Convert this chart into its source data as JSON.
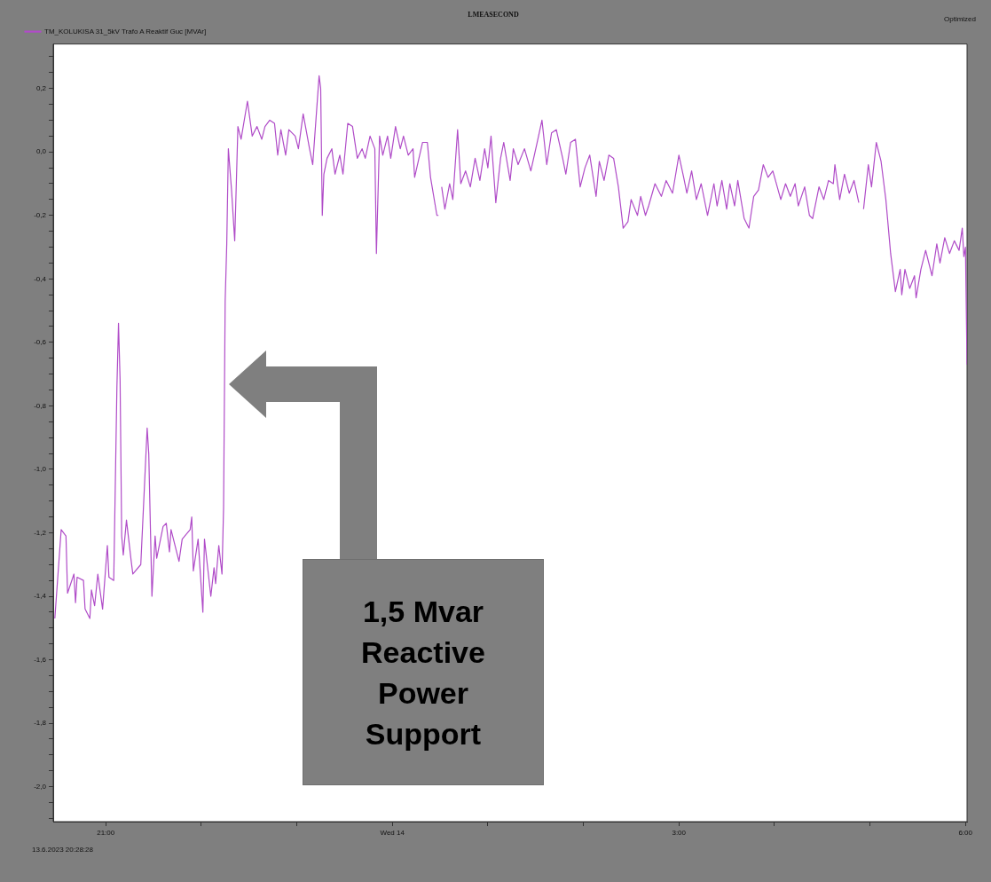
{
  "chart_data": {
    "type": "line",
    "title": "LMEASECOND",
    "legend": "top left",
    "grid": false,
    "marker": "none",
    "line_style": "solid",
    "xlim": [
      "2023-06-13T20:27",
      "2023-06-14T06:01"
    ],
    "xticks": [
      {
        "value": "2023-06-13T21:00",
        "label": "21:00"
      },
      {
        "value": "2023-06-13T22:00",
        "label": null
      },
      {
        "value": "2023-06-13T23:00",
        "label": null
      },
      {
        "value": "2023-06-14T00:00",
        "label": "Wed 14"
      },
      {
        "value": "2023-06-14T01:00",
        "label": null
      },
      {
        "value": "2023-06-14T02:00",
        "label": null
      },
      {
        "value": "2023-06-14T03:00",
        "label": "3:00"
      },
      {
        "value": "2023-06-14T04:00",
        "label": null
      },
      {
        "value": "2023-06-14T05:00",
        "label": null
      },
      {
        "value": "2023-06-14T06:00",
        "label": "6:00"
      }
    ],
    "ylim": [
      -2.11,
      0.34
    ],
    "yticks": [
      {
        "value": 0.3,
        "label": null
      },
      {
        "value": 0.25,
        "label": null
      },
      {
        "value": 0.2,
        "label": "0,2"
      },
      {
        "value": 0.15,
        "label": null
      },
      {
        "value": 0.1,
        "label": null
      },
      {
        "value": 0.05,
        "label": null
      },
      {
        "value": 0,
        "label": "0,0"
      },
      {
        "value": -0.05,
        "label": null
      },
      {
        "value": -0.1,
        "label": null
      },
      {
        "value": -0.15,
        "label": null
      },
      {
        "value": -0.2,
        "label": "-0,2"
      },
      {
        "value": -0.25,
        "label": null
      },
      {
        "value": -0.3,
        "label": null
      },
      {
        "value": -0.35,
        "label": null
      },
      {
        "value": -0.4,
        "label": "-0,4"
      },
      {
        "value": -0.45,
        "label": null
      },
      {
        "value": -0.5,
        "label": null
      },
      {
        "value": -0.55,
        "label": null
      },
      {
        "value": -0.6,
        "label": "-0,6"
      },
      {
        "value": -0.65,
        "label": null
      },
      {
        "value": -0.7,
        "label": null
      },
      {
        "value": -0.75,
        "label": null
      },
      {
        "value": -0.8,
        "label": "-0,8"
      },
      {
        "value": -0.85,
        "label": null
      },
      {
        "value": -0.9,
        "label": null
      },
      {
        "value": -0.95,
        "label": null
      },
      {
        "value": -1,
        "label": "-1,0"
      },
      {
        "value": -1.05,
        "label": null
      },
      {
        "value": -1.1,
        "label": null
      },
      {
        "value": -1.15,
        "label": null
      },
      {
        "value": -1.2,
        "label": "-1,2"
      },
      {
        "value": -1.25,
        "label": null
      },
      {
        "value": -1.3,
        "label": null
      },
      {
        "value": -1.35,
        "label": null
      },
      {
        "value": -1.4,
        "label": "-1,4"
      },
      {
        "value": -1.45,
        "label": null
      },
      {
        "value": -1.5,
        "label": null
      },
      {
        "value": -1.55,
        "label": null
      },
      {
        "value": -1.6,
        "label": "-1,6"
      },
      {
        "value": -1.65,
        "label": null
      },
      {
        "value": -1.7,
        "label": null
      },
      {
        "value": -1.75,
        "label": null
      },
      {
        "value": -1.8,
        "label": "-1,8"
      },
      {
        "value": -1.85,
        "label": null
      },
      {
        "value": -1.9,
        "label": null
      },
      {
        "value": -1.95,
        "label": null
      },
      {
        "value": -2,
        "label": "-2,0"
      },
      {
        "value": -2.05,
        "label": null
      },
      {
        "value": -2.1,
        "label": null
      }
    ],
    "x": [
      "2023-06-13T20:28",
      "2023-06-13T20:32",
      "2023-06-13T20:35",
      "2023-06-13T20:36",
      "2023-06-13T20:40",
      "2023-06-13T20:41",
      "2023-06-13T20:42",
      "2023-06-13T20:46",
      "2023-06-13T20:47",
      "2023-06-13T20:50",
      "2023-06-13T20:51",
      "2023-06-13T20:53",
      "2023-06-13T20:55",
      "2023-06-13T20:58",
      "2023-06-13T21:01",
      "2023-06-13T21:02",
      "2023-06-13T21:05",
      "2023-06-13T21:07",
      "2023-06-13T21:08",
      "2023-06-13T21:09",
      "2023-06-13T21:10",
      "2023-06-13T21:11",
      "2023-06-13T21:13",
      "2023-06-13T21:16",
      "2023-06-13T21:17",
      "2023-06-13T21:22",
      "2023-06-13T21:26",
      "2023-06-13T21:27",
      "2023-06-13T21:29",
      "2023-06-13T21:31",
      "2023-06-13T21:32",
      "2023-06-13T21:36",
      "2023-06-13T21:38",
      "2023-06-13T21:40",
      "2023-06-13T21:41",
      "2023-06-13T21:46",
      "2023-06-13T21:48",
      "2023-06-13T21:53",
      "2023-06-13T21:54",
      "2023-06-13T21:55",
      "2023-06-13T21:58",
      "2023-06-13T22:01",
      "2023-06-13T22:02",
      "2023-06-13T22:06",
      "2023-06-13T22:08",
      "2023-06-13T22:09",
      "2023-06-13T22:11",
      "2023-06-13T22:13",
      "2023-06-13T22:14",
      "2023-06-13T22:15",
      "2023-06-13T22:16",
      "2023-06-13T22:17",
      "2023-06-13T22:19",
      "2023-06-13T22:21",
      "2023-06-13T22:23",
      "2023-06-13T22:25",
      "2023-06-13T22:29",
      "2023-06-13T22:32",
      "2023-06-13T22:35",
      "2023-06-13T22:38",
      "2023-06-13T22:40",
      "2023-06-13T22:43",
      "2023-06-13T22:46",
      "2023-06-13T22:48",
      "2023-06-13T22:50",
      "2023-06-13T22:53",
      "2023-06-13T22:55",
      "2023-06-13T22:59",
      "2023-06-13T23:01",
      "2023-06-13T23:04",
      "2023-06-13T23:08",
      "2023-06-13T23:10",
      "2023-06-13T23:14",
      "2023-06-13T23:15",
      "2023-06-13T23:16",
      "2023-06-13T23:17",
      "2023-06-13T23:19",
      "2023-06-13T23:22",
      "2023-06-13T23:24",
      "2023-06-13T23:27",
      "2023-06-13T23:29",
      "2023-06-13T23:32",
      "2023-06-13T23:35",
      "2023-06-13T23:38",
      "2023-06-13T23:41",
      "2023-06-13T23:43",
      "2023-06-13T23:46",
      "2023-06-13T23:49",
      "2023-06-13T23:50",
      "2023-06-13T23:52",
      "2023-06-13T23:54",
      "2023-06-13T23:57",
      "2023-06-13T23:59",
      "2023-06-14T00:02",
      "2023-06-14T00:05",
      "2023-06-14T00:07",
      "2023-06-14T00:10",
      "2023-06-14T00:13",
      "2023-06-14T00:14",
      "2023-06-14T00:19",
      "2023-06-14T00:22",
      "2023-06-14T00:24",
      "2023-06-14T00:28",
      "2023-06-14T00:29",
      "2023-06-14T00:30",
      "2023-06-14T00:31",
      "2023-06-14T00:33",
      "2023-06-14T00:36",
      "2023-06-14T00:38",
      "2023-06-14T00:41",
      "2023-06-14T00:43",
      "2023-06-14T00:46",
      "2023-06-14T00:49",
      "2023-06-14T00:52",
      "2023-06-14T00:55",
      "2023-06-14T00:58",
      "2023-06-14T01:00",
      "2023-06-14T01:02",
      "2023-06-14T01:05",
      "2023-06-14T01:08",
      "2023-06-14T01:10",
      "2023-06-14T01:14",
      "2023-06-14T01:16",
      "2023-06-14T01:19",
      "2023-06-14T01:23",
      "2023-06-14T01:27",
      "2023-06-14T01:31",
      "2023-06-14T01:34",
      "2023-06-14T01:37",
      "2023-06-14T01:40",
      "2023-06-14T01:43",
      "2023-06-14T01:47",
      "2023-06-14T01:49",
      "2023-06-14T01:52",
      "2023-06-14T01:55",
      "2023-06-14T01:58",
      "2023-06-14T02:01",
      "2023-06-14T02:04",
      "2023-06-14T02:08",
      "2023-06-14T02:10",
      "2023-06-14T02:13",
      "2023-06-14T02:16",
      "2023-06-14T02:19",
      "2023-06-14T02:22",
      "2023-06-14T02:25",
      "2023-06-14T02:28",
      "2023-06-14T02:30",
      "2023-06-14T02:34",
      "2023-06-14T02:36",
      "2023-06-14T02:39",
      "2023-06-14T02:41",
      "2023-06-14T02:45",
      "2023-06-14T02:49",
      "2023-06-14T02:52",
      "2023-06-14T02:56",
      "2023-06-14T03:00",
      "2023-06-14T03:03",
      "2023-06-14T03:05",
      "2023-06-14T03:08",
      "2023-06-14T03:11",
      "2023-06-14T03:14",
      "2023-06-14T03:18",
      "2023-06-14T03:22",
      "2023-06-14T03:24",
      "2023-06-14T03:27",
      "2023-06-14T03:30",
      "2023-06-14T03:32",
      "2023-06-14T03:35",
      "2023-06-14T03:37",
      "2023-06-14T03:41",
      "2023-06-14T03:44",
      "2023-06-14T03:47",
      "2023-06-14T03:50",
      "2023-06-14T03:53",
      "2023-06-14T03:56",
      "2023-06-14T03:59",
      "2023-06-14T04:04",
      "2023-06-14T04:07",
      "2023-06-14T04:10",
      "2023-06-14T04:13",
      "2023-06-14T04:15",
      "2023-06-14T04:19",
      "2023-06-14T04:22",
      "2023-06-14T04:24",
      "2023-06-14T04:28",
      "2023-06-14T04:31",
      "2023-06-14T04:34",
      "2023-06-14T04:37",
      "2023-06-14T04:38",
      "2023-06-14T04:41",
      "2023-06-14T04:44",
      "2023-06-14T04:47",
      "2023-06-14T04:50",
      "2023-06-14T04:53",
      "2023-06-14T04:55",
      "2023-06-14T04:56",
      "2023-06-14T04:59",
      "2023-06-14T05:01",
      "2023-06-14T05:04",
      "2023-06-14T05:07",
      "2023-06-14T05:10",
      "2023-06-14T05:13",
      "2023-06-14T05:16",
      "2023-06-14T05:19",
      "2023-06-14T05:20",
      "2023-06-14T05:22",
      "2023-06-14T05:25",
      "2023-06-14T05:28",
      "2023-06-14T05:29",
      "2023-06-14T05:32",
      "2023-06-14T05:35",
      "2023-06-14T05:39",
      "2023-06-14T05:42",
      "2023-06-14T05:44",
      "2023-06-14T05:47",
      "2023-06-14T05:50",
      "2023-06-14T05:53",
      "2023-06-14T05:56",
      "2023-06-14T05:58",
      "2023-06-14T05:59",
      "2023-06-14T06:00",
      "2023-06-14T06:01"
    ],
    "series": [
      {
        "name": "TM_KOLUKISA 31_5kV Trafo A Reaktif Guc [MVAr]",
        "color": "#b04cc8",
        "values": [
          -1.47,
          -1.19,
          -1.21,
          -1.39,
          -1.33,
          -1.42,
          -1.34,
          -1.35,
          -1.44,
          -1.47,
          -1.38,
          -1.43,
          -1.33,
          -1.44,
          -1.24,
          -1.34,
          -1.35,
          -0.74,
          -0.54,
          -0.72,
          -1.21,
          -1.27,
          -1.16,
          -1.29,
          -1.33,
          -1.3,
          -0.87,
          -0.95,
          -1.4,
          -1.21,
          -1.28,
          -1.18,
          -1.17,
          -1.26,
          -1.19,
          -1.29,
          -1.22,
          -1.19,
          -1.15,
          -1.32,
          -1.22,
          -1.45,
          -1.22,
          -1.4,
          -1.31,
          -1.36,
          -1.24,
          -1.33,
          -1.12,
          -0.47,
          -0.29,
          0.01,
          -0.12,
          -0.28,
          0.08,
          0.04,
          0.16,
          0.05,
          0.08,
          0.04,
          0.08,
          0.1,
          0.09,
          -0.01,
          0.07,
          -0.01,
          0.07,
          0.05,
          0.01,
          0.12,
          0.01,
          -0.04,
          0.24,
          0.2,
          -0.2,
          -0.07,
          -0.02,
          0.01,
          -0.07,
          -0.01,
          -0.07,
          0.09,
          0.08,
          -0.02,
          0.01,
          -0.02,
          0.05,
          0.01,
          -0.32,
          0.05,
          -0.01,
          0.05,
          -0.02,
          0.08,
          0.01,
          0.05,
          -0.01,
          0.01,
          -0.08,
          0.03,
          0.03,
          -0.08,
          -0.2,
          -0.2,
          null,
          -0.11,
          -0.18,
          -0.1,
          -0.15,
          0.07,
          -0.1,
          -0.06,
          -0.11,
          -0.02,
          -0.09,
          0.01,
          -0.05,
          0.05,
          -0.16,
          -0.02,
          0.03,
          -0.09,
          0.01,
          -0.04,
          0.01,
          -0.06,
          0.03,
          0.1,
          -0.04,
          0.06,
          0.07,
          -0.02,
          -0.07,
          0.03,
          0.04,
          -0.11,
          -0.05,
          -0.01,
          -0.14,
          -0.03,
          -0.09,
          -0.01,
          -0.02,
          -0.11,
          -0.24,
          -0.22,
          -0.15,
          -0.2,
          -0.14,
          -0.2,
          -0.17,
          -0.1,
          -0.14,
          -0.09,
          -0.13,
          -0.01,
          -0.08,
          -0.13,
          -0.06,
          -0.15,
          -0.1,
          -0.2,
          -0.1,
          -0.17,
          -0.09,
          -0.18,
          -0.1,
          -0.17,
          -0.09,
          -0.21,
          -0.24,
          -0.14,
          -0.12,
          -0.04,
          -0.08,
          -0.06,
          -0.15,
          -0.1,
          -0.14,
          -0.1,
          -0.17,
          -0.11,
          -0.2,
          -0.21,
          -0.11,
          -0.15,
          -0.09,
          -0.1,
          -0.04,
          -0.15,
          -0.07,
          -0.13,
          -0.09,
          -0.16,
          null,
          -0.18,
          -0.04,
          -0.11,
          0.03,
          -0.03,
          -0.15,
          -0.32,
          -0.44,
          -0.37,
          -0.45,
          -0.37,
          -0.43,
          -0.39,
          -0.46,
          -0.37,
          -0.31,
          -0.39,
          -0.29,
          -0.35,
          -0.27,
          -0.32,
          -0.28,
          -0.31,
          -0.24,
          -0.33,
          -0.3,
          -0.67
        ]
      }
    ],
    "annotations": [
      "1,5 Mvar Reactive Power Support",
      "13.6.2023 20:28:28",
      "Optimized"
    ]
  }
}
